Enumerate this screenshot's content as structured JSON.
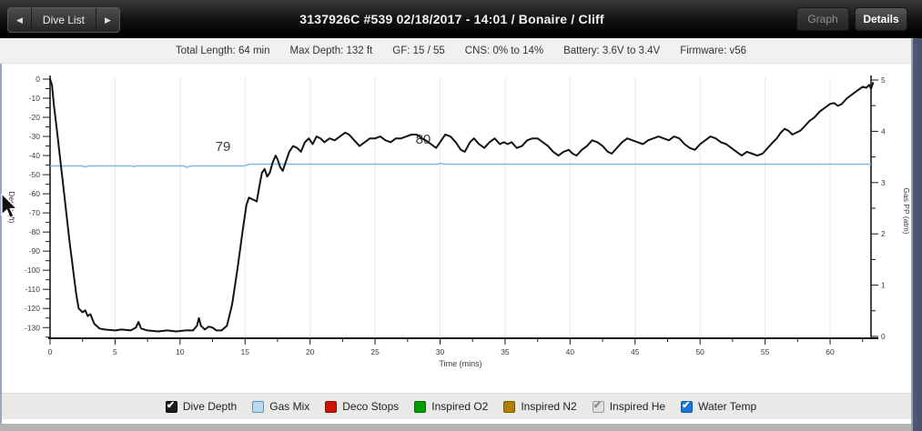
{
  "topbar": {
    "prev_label": "◀",
    "dive_list_label": "Dive List",
    "next_label": "▶",
    "title": "3137926C #539 02/18/2017 - 14:01  / Bonaire / Cliff",
    "graph_label": "Graph",
    "details_label": "Details"
  },
  "infobar": {
    "items": [
      "Total Length: 64 min",
      "Max Depth: 132 ft",
      "GF: 15 / 55",
      "CNS: 0% to 14%",
      "Battery: 3.6V to 3.4V",
      "Firmware: v56"
    ]
  },
  "chart_data": {
    "type": "line",
    "xlabel": "Time (mins)",
    "ylabel_left": "Depth (ft)",
    "ylabel_right": "Gas PP (atm)",
    "xlim": [
      0,
      63.3
    ],
    "depth_lim": [
      0,
      -135
    ],
    "gas_pp_lim": [
      0,
      5
    ],
    "x_ticks": [
      0,
      5,
      10,
      15,
      20,
      25,
      30,
      35,
      40,
      45,
      50,
      55,
      60
    ],
    "x_minor_step": 2.5,
    "depth_ticks": [
      0,
      -10,
      -20,
      -30,
      -40,
      -50,
      -60,
      -70,
      -80,
      -90,
      -100,
      -110,
      -120,
      -130
    ],
    "depth_minor_step": 5,
    "gas_pp_ticks": [
      0,
      1,
      2,
      3,
      4,
      5
    ],
    "gas_pp_minor_step": 0.5,
    "grid": "vertical-only",
    "grid_color": "#e9e9e9",
    "axis_color": "#1a1a1a",
    "annotation_color": "#2433cc",
    "annotations": [
      {
        "text": "79",
        "t": 13.3,
        "depth": -37.6
      },
      {
        "text": "80",
        "t": 28.7,
        "depth": -33.8
      }
    ],
    "series": [
      {
        "name": "Dive Depth",
        "color": "#141414",
        "width": 2,
        "axis": "depth",
        "points": [
          [
            0,
            0
          ],
          [
            0.15,
            -3
          ],
          [
            0.3,
            -14
          ],
          [
            0.5,
            -25
          ],
          [
            1.0,
            -55
          ],
          [
            1.5,
            -85
          ],
          [
            2.0,
            -112
          ],
          [
            2.2,
            -120
          ],
          [
            2.5,
            -122
          ],
          [
            2.7,
            -121
          ],
          [
            2.9,
            -124
          ],
          [
            3.1,
            -123
          ],
          [
            3.4,
            -128
          ],
          [
            3.8,
            -130.5
          ],
          [
            4.2,
            -131
          ],
          [
            5.0,
            -131.5
          ],
          [
            5.5,
            -131
          ],
          [
            6.2,
            -131.5
          ],
          [
            6.6,
            -130
          ],
          [
            6.8,
            -127
          ],
          [
            7.0,
            -130.5
          ],
          [
            7.5,
            -131.5
          ],
          [
            8.3,
            -132
          ],
          [
            9.0,
            -131.5
          ],
          [
            9.7,
            -132
          ],
          [
            10.4,
            -131.5
          ],
          [
            11.0,
            -131.5
          ],
          [
            11.3,
            -129
          ],
          [
            11.45,
            -125
          ],
          [
            11.6,
            -129
          ],
          [
            11.9,
            -131
          ],
          [
            12.2,
            -129.5
          ],
          [
            12.5,
            -130
          ],
          [
            12.8,
            -131.5
          ],
          [
            13.2,
            -131.5
          ],
          [
            13.6,
            -129
          ],
          [
            14.0,
            -118
          ],
          [
            14.4,
            -100
          ],
          [
            14.8,
            -80
          ],
          [
            15.1,
            -66
          ],
          [
            15.3,
            -62
          ],
          [
            15.6,
            -63
          ],
          [
            15.9,
            -64
          ],
          [
            16.1,
            -56
          ],
          [
            16.3,
            -49
          ],
          [
            16.5,
            -47
          ],
          [
            16.7,
            -51
          ],
          [
            16.9,
            -49
          ],
          [
            17.1,
            -44
          ],
          [
            17.35,
            -40
          ],
          [
            17.5,
            -42
          ],
          [
            17.7,
            -46
          ],
          [
            17.9,
            -48
          ],
          [
            18.1,
            -44
          ],
          [
            18.4,
            -38
          ],
          [
            18.7,
            -35
          ],
          [
            19.0,
            -36
          ],
          [
            19.3,
            -38
          ],
          [
            19.6,
            -33
          ],
          [
            19.9,
            -31
          ],
          [
            20.2,
            -34
          ],
          [
            20.5,
            -30
          ],
          [
            20.8,
            -31
          ],
          [
            21.1,
            -33
          ],
          [
            21.5,
            -31
          ],
          [
            21.9,
            -32
          ],
          [
            22.3,
            -30
          ],
          [
            22.7,
            -28
          ],
          [
            23.0,
            -29
          ],
          [
            23.4,
            -32
          ],
          [
            23.8,
            -35
          ],
          [
            24.2,
            -33
          ],
          [
            24.6,
            -31
          ],
          [
            25.0,
            -31
          ],
          [
            25.4,
            -30
          ],
          [
            25.8,
            -32
          ],
          [
            26.2,
            -33
          ],
          [
            26.6,
            -31
          ],
          [
            27.0,
            -31
          ],
          [
            27.4,
            -30
          ],
          [
            27.8,
            -29
          ],
          [
            28.2,
            -29
          ],
          [
            28.6,
            -31
          ],
          [
            28.9,
            -32
          ],
          [
            29.3,
            -34
          ],
          [
            29.7,
            -36
          ],
          [
            30.1,
            -32
          ],
          [
            30.4,
            -29
          ],
          [
            30.8,
            -30
          ],
          [
            31.2,
            -33
          ],
          [
            31.6,
            -37
          ],
          [
            31.9,
            -38
          ],
          [
            32.3,
            -33
          ],
          [
            32.6,
            -31
          ],
          [
            33.0,
            -34
          ],
          [
            33.4,
            -36
          ],
          [
            33.8,
            -33
          ],
          [
            34.2,
            -31
          ],
          [
            34.6,
            -34
          ],
          [
            34.9,
            -33
          ],
          [
            35.2,
            -34
          ],
          [
            35.5,
            -33
          ],
          [
            35.9,
            -36
          ],
          [
            36.3,
            -35
          ],
          [
            36.7,
            -32
          ],
          [
            37.1,
            -31
          ],
          [
            37.5,
            -31
          ],
          [
            37.9,
            -33
          ],
          [
            38.3,
            -35
          ],
          [
            38.7,
            -38
          ],
          [
            39.1,
            -40
          ],
          [
            39.5,
            -38
          ],
          [
            39.9,
            -37
          ],
          [
            40.2,
            -39
          ],
          [
            40.5,
            -40
          ],
          [
            40.9,
            -37
          ],
          [
            41.3,
            -35
          ],
          [
            41.7,
            -32
          ],
          [
            42.1,
            -33
          ],
          [
            42.5,
            -35
          ],
          [
            42.9,
            -38
          ],
          [
            43.2,
            -39
          ],
          [
            43.6,
            -36
          ],
          [
            44.0,
            -33
          ],
          [
            44.4,
            -31
          ],
          [
            44.8,
            -32
          ],
          [
            45.2,
            -33
          ],
          [
            45.6,
            -34
          ],
          [
            46.0,
            -32
          ],
          [
            46.4,
            -31
          ],
          [
            46.8,
            -30
          ],
          [
            47.2,
            -31
          ],
          [
            47.6,
            -32
          ],
          [
            48.0,
            -30
          ],
          [
            48.4,
            -31
          ],
          [
            48.8,
            -34
          ],
          [
            49.2,
            -36
          ],
          [
            49.6,
            -37
          ],
          [
            50.0,
            -34
          ],
          [
            50.4,
            -32
          ],
          [
            50.8,
            -30
          ],
          [
            51.2,
            -31
          ],
          [
            51.6,
            -33
          ],
          [
            52.0,
            -34
          ],
          [
            52.4,
            -36
          ],
          [
            52.8,
            -38
          ],
          [
            53.2,
            -40
          ],
          [
            53.6,
            -38
          ],
          [
            54.0,
            -39
          ],
          [
            54.4,
            -40
          ],
          [
            54.8,
            -39
          ],
          [
            55.2,
            -36
          ],
          [
            55.6,
            -33
          ],
          [
            55.9,
            -31
          ],
          [
            56.2,
            -28
          ],
          [
            56.5,
            -26
          ],
          [
            56.8,
            -27
          ],
          [
            57.1,
            -29
          ],
          [
            57.4,
            -28
          ],
          [
            57.7,
            -27
          ],
          [
            58.0,
            -25
          ],
          [
            58.4,
            -22
          ],
          [
            58.8,
            -20
          ],
          [
            59.2,
            -17
          ],
          [
            59.6,
            -15
          ],
          [
            60.0,
            -13
          ],
          [
            60.3,
            -12.5
          ],
          [
            60.6,
            -14
          ],
          [
            60.9,
            -13
          ],
          [
            61.3,
            -10
          ],
          [
            61.7,
            -8
          ],
          [
            62.1,
            -6
          ],
          [
            62.5,
            -4
          ],
          [
            62.8,
            -4.5
          ],
          [
            63.0,
            -3
          ],
          [
            63.15,
            -5
          ],
          [
            63.3,
            -2
          ]
        ]
      },
      {
        "name": "Water Temp",
        "color": "#7fb9ea",
        "width": 1.5,
        "axis": "temp_f",
        "points": [
          [
            0,
            79
          ],
          [
            2.5,
            79
          ],
          [
            2.7,
            78.4
          ],
          [
            2.95,
            79
          ],
          [
            6.3,
            79
          ],
          [
            6.45,
            78.6
          ],
          [
            6.6,
            79
          ],
          [
            10.3,
            79
          ],
          [
            10.5,
            78.3
          ],
          [
            10.9,
            79
          ],
          [
            14.9,
            79
          ],
          [
            15.35,
            80
          ],
          [
            29.9,
            80
          ],
          [
            30.05,
            80.5
          ],
          [
            30.25,
            80
          ],
          [
            63.15,
            80
          ]
        ]
      }
    ]
  },
  "legend": {
    "items": [
      {
        "label": "Dive Depth",
        "box": "#1c1c1c",
        "border": "#000000",
        "checked": true,
        "check": "#ffffff"
      },
      {
        "label": "Gas Mix",
        "box": "#b9d8f1",
        "border": "#5f93c0",
        "checked": false,
        "check": ""
      },
      {
        "label": "Deco Stops",
        "box": "#cc1400",
        "border": "#8a0d00",
        "checked": false,
        "check": ""
      },
      {
        "label": "Inspired O2",
        "box": "#009e00",
        "border": "#006a00",
        "checked": false,
        "check": ""
      },
      {
        "label": "Inspired N2",
        "box": "#b07f00",
        "border": "#7a5800",
        "checked": false,
        "check": ""
      },
      {
        "label": "Inspired He",
        "box": "#e0e0e0",
        "border": "#9a9a9a",
        "checked": true,
        "check": "#8d8d8d"
      },
      {
        "label": "Water Temp",
        "box": "#1777d2",
        "border": "#0f5da8",
        "checked": true,
        "check": "#ffffff"
      }
    ]
  }
}
